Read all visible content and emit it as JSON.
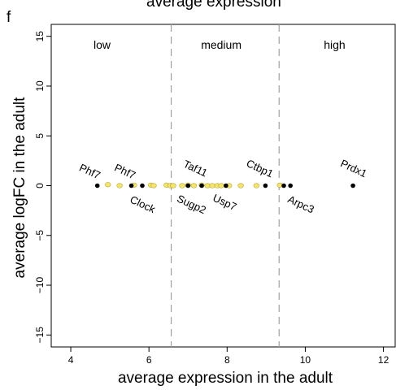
{
  "top_title": "average expression",
  "panel_label": "f",
  "chart_data": {
    "type": "scatter",
    "xlabel": "average expression in the adult",
    "ylabel": "average logFC in the adult",
    "xlim": [
      3.5,
      12.3
    ],
    "ylim": [
      -16.2,
      16.2
    ],
    "xticks": [
      4,
      6,
      8,
      10,
      12
    ],
    "yticks": [
      -15,
      -10,
      -5,
      0,
      5,
      10,
      15
    ],
    "vlines": [
      6.57,
      9.33
    ],
    "regions": [
      {
        "label": "low",
        "x": 4.8
      },
      {
        "label": "medium",
        "x": 7.85
      },
      {
        "label": "high",
        "x": 10.75
      }
    ],
    "colors": {
      "yellow_points": "#f5e56b",
      "yellow_edge": "#b8a838",
      "black_points": "#000000",
      "divider": "#a0a0a0"
    },
    "yellow_points": [
      {
        "x": 4.95,
        "y": 0.1
      },
      {
        "x": 5.25,
        "y": 0.0
      },
      {
        "x": 5.62,
        "y": 0.05
      },
      {
        "x": 6.05,
        "y": 0.05
      },
      {
        "x": 6.12,
        "y": 0.0
      },
      {
        "x": 6.45,
        "y": 0.05
      },
      {
        "x": 6.55,
        "y": 0.0
      },
      {
        "x": 6.62,
        "y": 0.0
      },
      {
        "x": 6.85,
        "y": 0.0
      },
      {
        "x": 7.0,
        "y": 0.05
      },
      {
        "x": 7.15,
        "y": 0.0
      },
      {
        "x": 7.35,
        "y": 0.05
      },
      {
        "x": 7.5,
        "y": 0.0
      },
      {
        "x": 7.62,
        "y": 0.0
      },
      {
        "x": 7.75,
        "y": 0.0
      },
      {
        "x": 7.85,
        "y": 0.0
      },
      {
        "x": 8.05,
        "y": 0.0
      },
      {
        "x": 8.35,
        "y": 0.0
      },
      {
        "x": 8.75,
        "y": 0.0
      },
      {
        "x": 9.35,
        "y": 0.05
      }
    ],
    "black_points": [
      {
        "x": 4.68,
        "y": 0.0
      },
      {
        "x": 5.55,
        "y": 0.0
      },
      {
        "x": 5.83,
        "y": 0.0
      },
      {
        "x": 7.0,
        "y": 0.0
      },
      {
        "x": 7.35,
        "y": 0.0
      },
      {
        "x": 7.97,
        "y": 0.0
      },
      {
        "x": 8.98,
        "y": 0.0
      },
      {
        "x": 9.45,
        "y": 0.0
      },
      {
        "x": 9.62,
        "y": 0.0
      },
      {
        "x": 11.22,
        "y": 0.0
      }
    ],
    "annotations": [
      {
        "text": "Phf7",
        "x": 4.45,
        "y": 1.1,
        "rotate": 25
      },
      {
        "text": "Phf7",
        "x": 5.35,
        "y": 1.1,
        "rotate": 25
      },
      {
        "text": "Clock",
        "x": 5.8,
        "y": -2.2,
        "rotate": 25
      },
      {
        "text": "Taf11",
        "x": 7.15,
        "y": 1.4,
        "rotate": 25
      },
      {
        "text": "Sugp2",
        "x": 7.05,
        "y": -2.2,
        "rotate": 25
      },
      {
        "text": "Usp7",
        "x": 7.9,
        "y": -2.0,
        "rotate": 25
      },
      {
        "text": "Ctbp1",
        "x": 8.8,
        "y": 1.4,
        "rotate": 25
      },
      {
        "text": "Arpc3",
        "x": 9.85,
        "y": -2.2,
        "rotate": 25
      },
      {
        "text": "Prdx1",
        "x": 11.2,
        "y": 1.4,
        "rotate": 25
      }
    ]
  }
}
